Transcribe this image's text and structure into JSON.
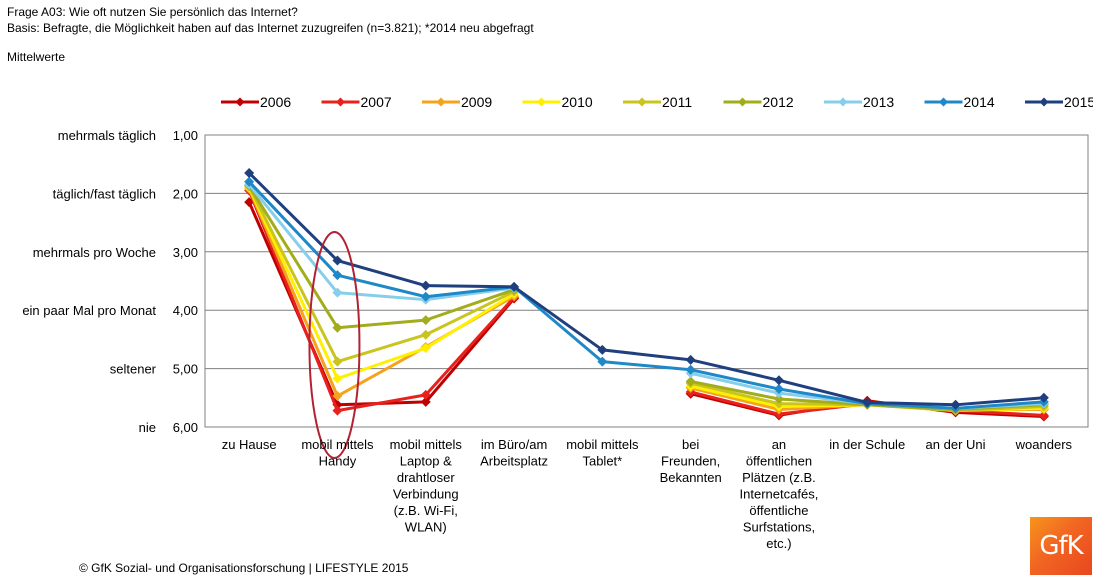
{
  "header": {
    "question": "Frage A03: Wie oft nutzen Sie persönlich das Internet?",
    "basis": "Basis: Befragte, die Möglichkeit haben auf das Internet zuzugreifen (n=3.821); *2014 neu abgefragt",
    "subtitle": "Mittelwerte"
  },
  "footer": "© GfK Sozial- und Organisationsforschung | LIFESTYLE 2015",
  "logo": {
    "text": "GfK",
    "icon": "gfk-logo"
  },
  "chart_data": {
    "type": "line",
    "title": "",
    "xlabel": "",
    "ylabel": "",
    "ylim": [
      1,
      6
    ],
    "y_reversed": true,
    "grid": true,
    "legend_position": "top",
    "y_ticks": [
      {
        "value": 1,
        "label": "1,00",
        "category": "mehrmals täglich"
      },
      {
        "value": 2,
        "label": "2,00",
        "category": "täglich/fast täglich"
      },
      {
        "value": 3,
        "label": "3,00",
        "category": "mehrmals pro Woche"
      },
      {
        "value": 4,
        "label": "4,00",
        "category": "ein paar Mal pro Monat"
      },
      {
        "value": 5,
        "label": "5,00",
        "category": "seltener"
      },
      {
        "value": 6,
        "label": "6,00",
        "category": "nie"
      }
    ],
    "categories": [
      [
        "zu Hause"
      ],
      [
        "mobil mittels",
        "Handy"
      ],
      [
        "mobil mittels",
        "Laptop &",
        "drahtloser",
        "Verbindung",
        "(z.B. Wi-Fi,",
        "WLAN)"
      ],
      [
        "im Büro/am",
        "Arbeitsplatz"
      ],
      [
        "mobil mittels",
        "Tablet*"
      ],
      [
        "bei",
        "Freunden,",
        "Bekannten"
      ],
      [
        "an",
        "öffentlichen",
        "Plätzen (z.B.",
        "Internetcafés,",
        "öffentliche",
        "Surfstations,",
        "etc.)"
      ],
      [
        "in der Schule"
      ],
      [
        "an der Uni"
      ],
      [
        "woanders"
      ]
    ],
    "series": [
      {
        "name": "2006",
        "color": "#c00000",
        "values": [
          2.15,
          5.62,
          5.57,
          3.8,
          null,
          5.43,
          5.8,
          5.55,
          5.75,
          5.82
        ]
      },
      {
        "name": "2007",
        "color": "#e8211c",
        "values": [
          1.95,
          5.72,
          5.45,
          3.78,
          null,
          5.4,
          5.78,
          5.6,
          5.72,
          5.8
        ]
      },
      {
        "name": "2009",
        "color": "#f5a31d",
        "values": [
          1.92,
          5.47,
          4.63,
          3.76,
          null,
          5.33,
          5.7,
          5.62,
          5.7,
          5.7
        ]
      },
      {
        "name": "2010",
        "color": "#fff000",
        "values": [
          1.9,
          5.17,
          4.65,
          3.72,
          null,
          5.3,
          5.65,
          5.62,
          5.72,
          5.68
        ]
      },
      {
        "name": "2011",
        "color": "#c9c41e",
        "values": [
          1.88,
          4.88,
          4.42,
          3.68,
          null,
          5.25,
          5.6,
          5.62,
          5.72,
          5.65
        ]
      },
      {
        "name": "2012",
        "color": "#a2ad1c",
        "values": [
          1.87,
          4.3,
          4.17,
          3.65,
          null,
          5.22,
          5.52,
          5.62,
          5.7,
          5.62
        ]
      },
      {
        "name": "2013",
        "color": "#87ceeb",
        "values": [
          1.85,
          3.7,
          3.82,
          3.62,
          null,
          5.08,
          5.42,
          5.6,
          5.68,
          5.6
        ]
      },
      {
        "name": "2014",
        "color": "#1e88c8",
        "values": [
          1.8,
          3.4,
          3.77,
          3.6,
          4.88,
          5.02,
          5.35,
          5.6,
          5.68,
          5.57
        ]
      },
      {
        "name": "2015",
        "color": "#1f3f7f",
        "values": [
          1.65,
          3.15,
          3.58,
          3.6,
          4.68,
          4.85,
          5.2,
          5.58,
          5.62,
          5.5
        ]
      }
    ]
  }
}
